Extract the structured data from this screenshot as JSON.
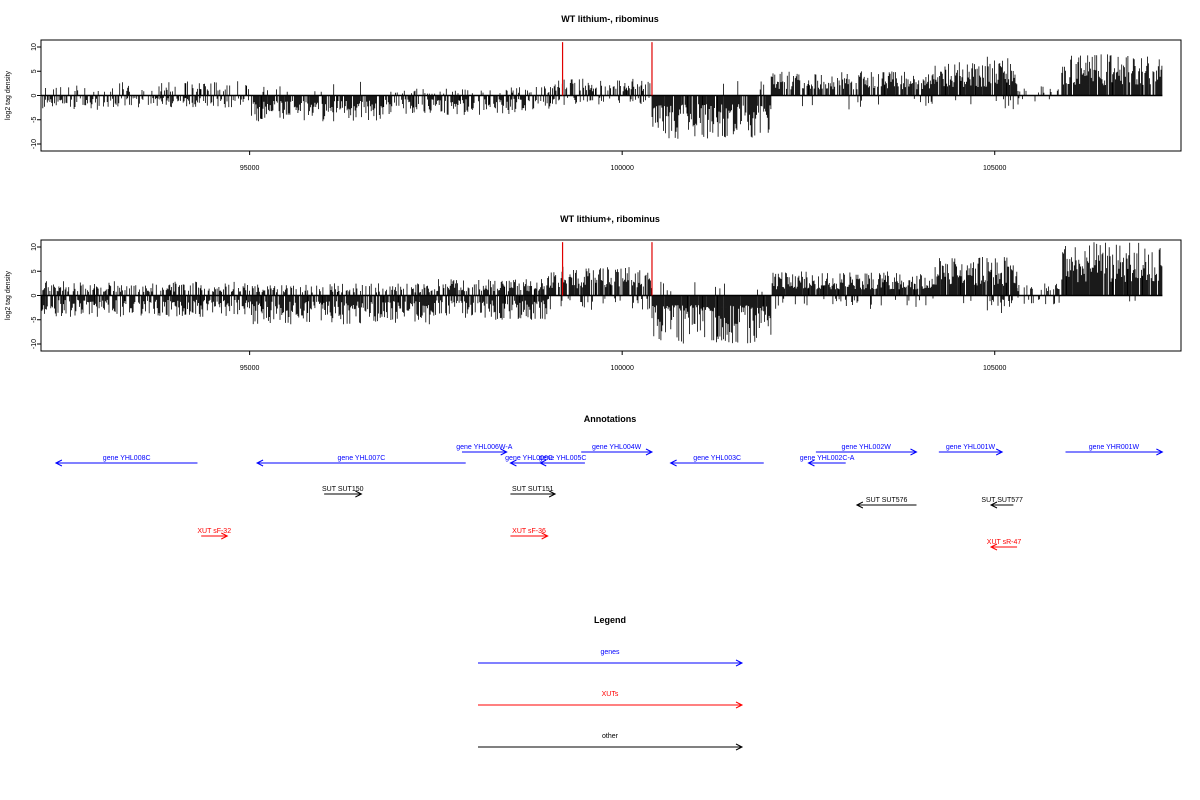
{
  "chart_data": [
    {
      "type": "bar",
      "title": "WT lithium-, ribominus",
      "xlabel": "",
      "ylabel": "log2 tag density",
      "xlim": [
        92200,
        107500
      ],
      "ylim": [
        -10,
        10
      ],
      "xticks": [
        95000,
        100000,
        105000
      ],
      "xtick_labels": [
        "95000",
        "100000",
        "105000"
      ],
      "yticks": [
        -10,
        -5,
        0,
        5,
        10
      ],
      "ytick_labels": [
        "-10",
        "-5",
        "0",
        "5",
        "10"
      ],
      "baseline": [
        92200,
        107250
      ],
      "markers": {
        "color": "#e00000",
        "x": [
          99200,
          100400
        ]
      },
      "density": {
        "color": "#000000",
        "profile": [
          [
            92200,
            0.25,
            2.5,
            0.5,
            3.0
          ],
          [
            93100,
            0.35,
            3.0,
            0.5,
            2.5
          ],
          [
            95000,
            0.05,
            3.0,
            0.85,
            5.5
          ],
          [
            96800,
            0.2,
            1.5,
            0.7,
            4.0
          ],
          [
            98500,
            0.3,
            2.0,
            0.55,
            3.5
          ],
          [
            99100,
            0.55,
            3.5,
            0.3,
            2.0
          ],
          [
            100400,
            0.05,
            3.0,
            0.95,
            9.0
          ],
          [
            102000,
            0.85,
            5.0,
            0.1,
            3.0
          ],
          [
            104200,
            0.97,
            7.0,
            0.03,
            2.0
          ],
          [
            104900,
            0.97,
            8.0,
            0.15,
            3.0
          ],
          [
            105300,
            0.2,
            2.0,
            0.1,
            2.0
          ],
          [
            105900,
            0.92,
            8.5,
            0.02,
            1.0
          ],
          [
            107250,
            0,
            0,
            0,
            0
          ]
        ]
      }
    },
    {
      "type": "bar",
      "title": "WT lithium+, ribominus",
      "xlabel": "",
      "ylabel": "log2 tag density",
      "xlim": [
        92200,
        107500
      ],
      "ylim": [
        -10,
        10
      ],
      "xticks": [
        95000,
        100000,
        105000
      ],
      "xtick_labels": [
        "95000",
        "100000",
        "105000"
      ],
      "yticks": [
        -10,
        -5,
        0,
        5,
        10
      ],
      "ytick_labels": [
        "-10",
        "-5",
        "0",
        "5",
        "10"
      ],
      "baseline": [
        92200,
        107250
      ],
      "markers": {
        "color": "#e00000",
        "x": [
          99200,
          100400
        ]
      },
      "density": {
        "color": "#000000",
        "profile": [
          [
            92200,
            0.55,
            3.0,
            0.75,
            4.5
          ],
          [
            95000,
            0.5,
            2.5,
            0.9,
            6.0
          ],
          [
            97500,
            0.7,
            3.5,
            0.75,
            5.0
          ],
          [
            99000,
            0.85,
            6.0,
            0.3,
            3.0
          ],
          [
            100400,
            0.08,
            3.0,
            0.97,
            10.0
          ],
          [
            102000,
            0.95,
            5.0,
            0.15,
            3.0
          ],
          [
            104200,
            0.97,
            8.0,
            0.05,
            2.0
          ],
          [
            104900,
            0.97,
            8.0,
            0.4,
            4.0
          ],
          [
            105300,
            0.5,
            3.0,
            0.2,
            2.0
          ],
          [
            105900,
            0.97,
            11.0,
            0.02,
            1.5
          ],
          [
            107250,
            0,
            0,
            0,
            0
          ]
        ]
      }
    },
    {
      "type": "annotation-track",
      "title": "Annotations",
      "xlim": [
        92200,
        107500
      ],
      "features": [
        {
          "label": "gene YHL008C",
          "class": "gene",
          "strand": "-",
          "start": 92400,
          "end": 94300
        },
        {
          "label": "gene YHL007C",
          "class": "gene",
          "strand": "-",
          "start": 95100,
          "end": 97900
        },
        {
          "label": "gene YHL006W-A",
          "class": "gene",
          "strand": "+",
          "start": 97850,
          "end": 98450
        },
        {
          "label": "gene YHL006C",
          "class": "gene",
          "strand": "-",
          "start": 98500,
          "end": 99000
        },
        {
          "label": "gene YHL005C",
          "class": "gene",
          "strand": "-",
          "start": 98900,
          "end": 99500
        },
        {
          "label": "gene YHL004W",
          "class": "gene",
          "strand": "+",
          "start": 99450,
          "end": 100400
        },
        {
          "label": "gene YHL003C",
          "class": "gene",
          "strand": "-",
          "start": 100650,
          "end": 101900
        },
        {
          "label": "gene YHL002C-A",
          "class": "gene",
          "strand": "-",
          "start": 102500,
          "end": 103000
        },
        {
          "label": "gene YHL002W",
          "class": "gene",
          "strand": "+",
          "start": 102600,
          "end": 103950
        },
        {
          "label": "gene YHL001W",
          "class": "gene",
          "strand": "+",
          "start": 104250,
          "end": 105100
        },
        {
          "label": "gene YHR001W",
          "class": "gene",
          "strand": "+",
          "start": 105950,
          "end": 107250
        },
        {
          "label": "SUT SUT150",
          "class": "other",
          "strand": "+",
          "start": 96000,
          "end": 96500
        },
        {
          "label": "SUT SUT151",
          "class": "other",
          "strand": "+",
          "start": 98500,
          "end": 99100
        },
        {
          "label": "SUT SUT576",
          "class": "other",
          "strand": "-",
          "start": 103150,
          "end": 103950
        },
        {
          "label": "SUT SUT577",
          "class": "other",
          "strand": "-",
          "start": 104950,
          "end": 105250
        },
        {
          "label": "XUT sF-32",
          "class": "XUT",
          "strand": "+",
          "start": 94350,
          "end": 94700
        },
        {
          "label": "XUT sF-36",
          "class": "XUT",
          "strand": "+",
          "start": 98500,
          "end": 99000
        },
        {
          "label": "XUT sR-47",
          "class": "XUT",
          "strand": "-",
          "start": 104950,
          "end": 105300
        }
      ]
    }
  ],
  "legend": {
    "title": "Legend",
    "items": [
      {
        "label": "genes",
        "color": "#0000ff"
      },
      {
        "label": "XUTs",
        "color": "#ff0000"
      },
      {
        "label": "other",
        "color": "#000000"
      }
    ]
  },
  "colors": {
    "gene": "#0000ff",
    "XUT": "#ff0000",
    "other": "#000000",
    "axis": "#000000"
  }
}
